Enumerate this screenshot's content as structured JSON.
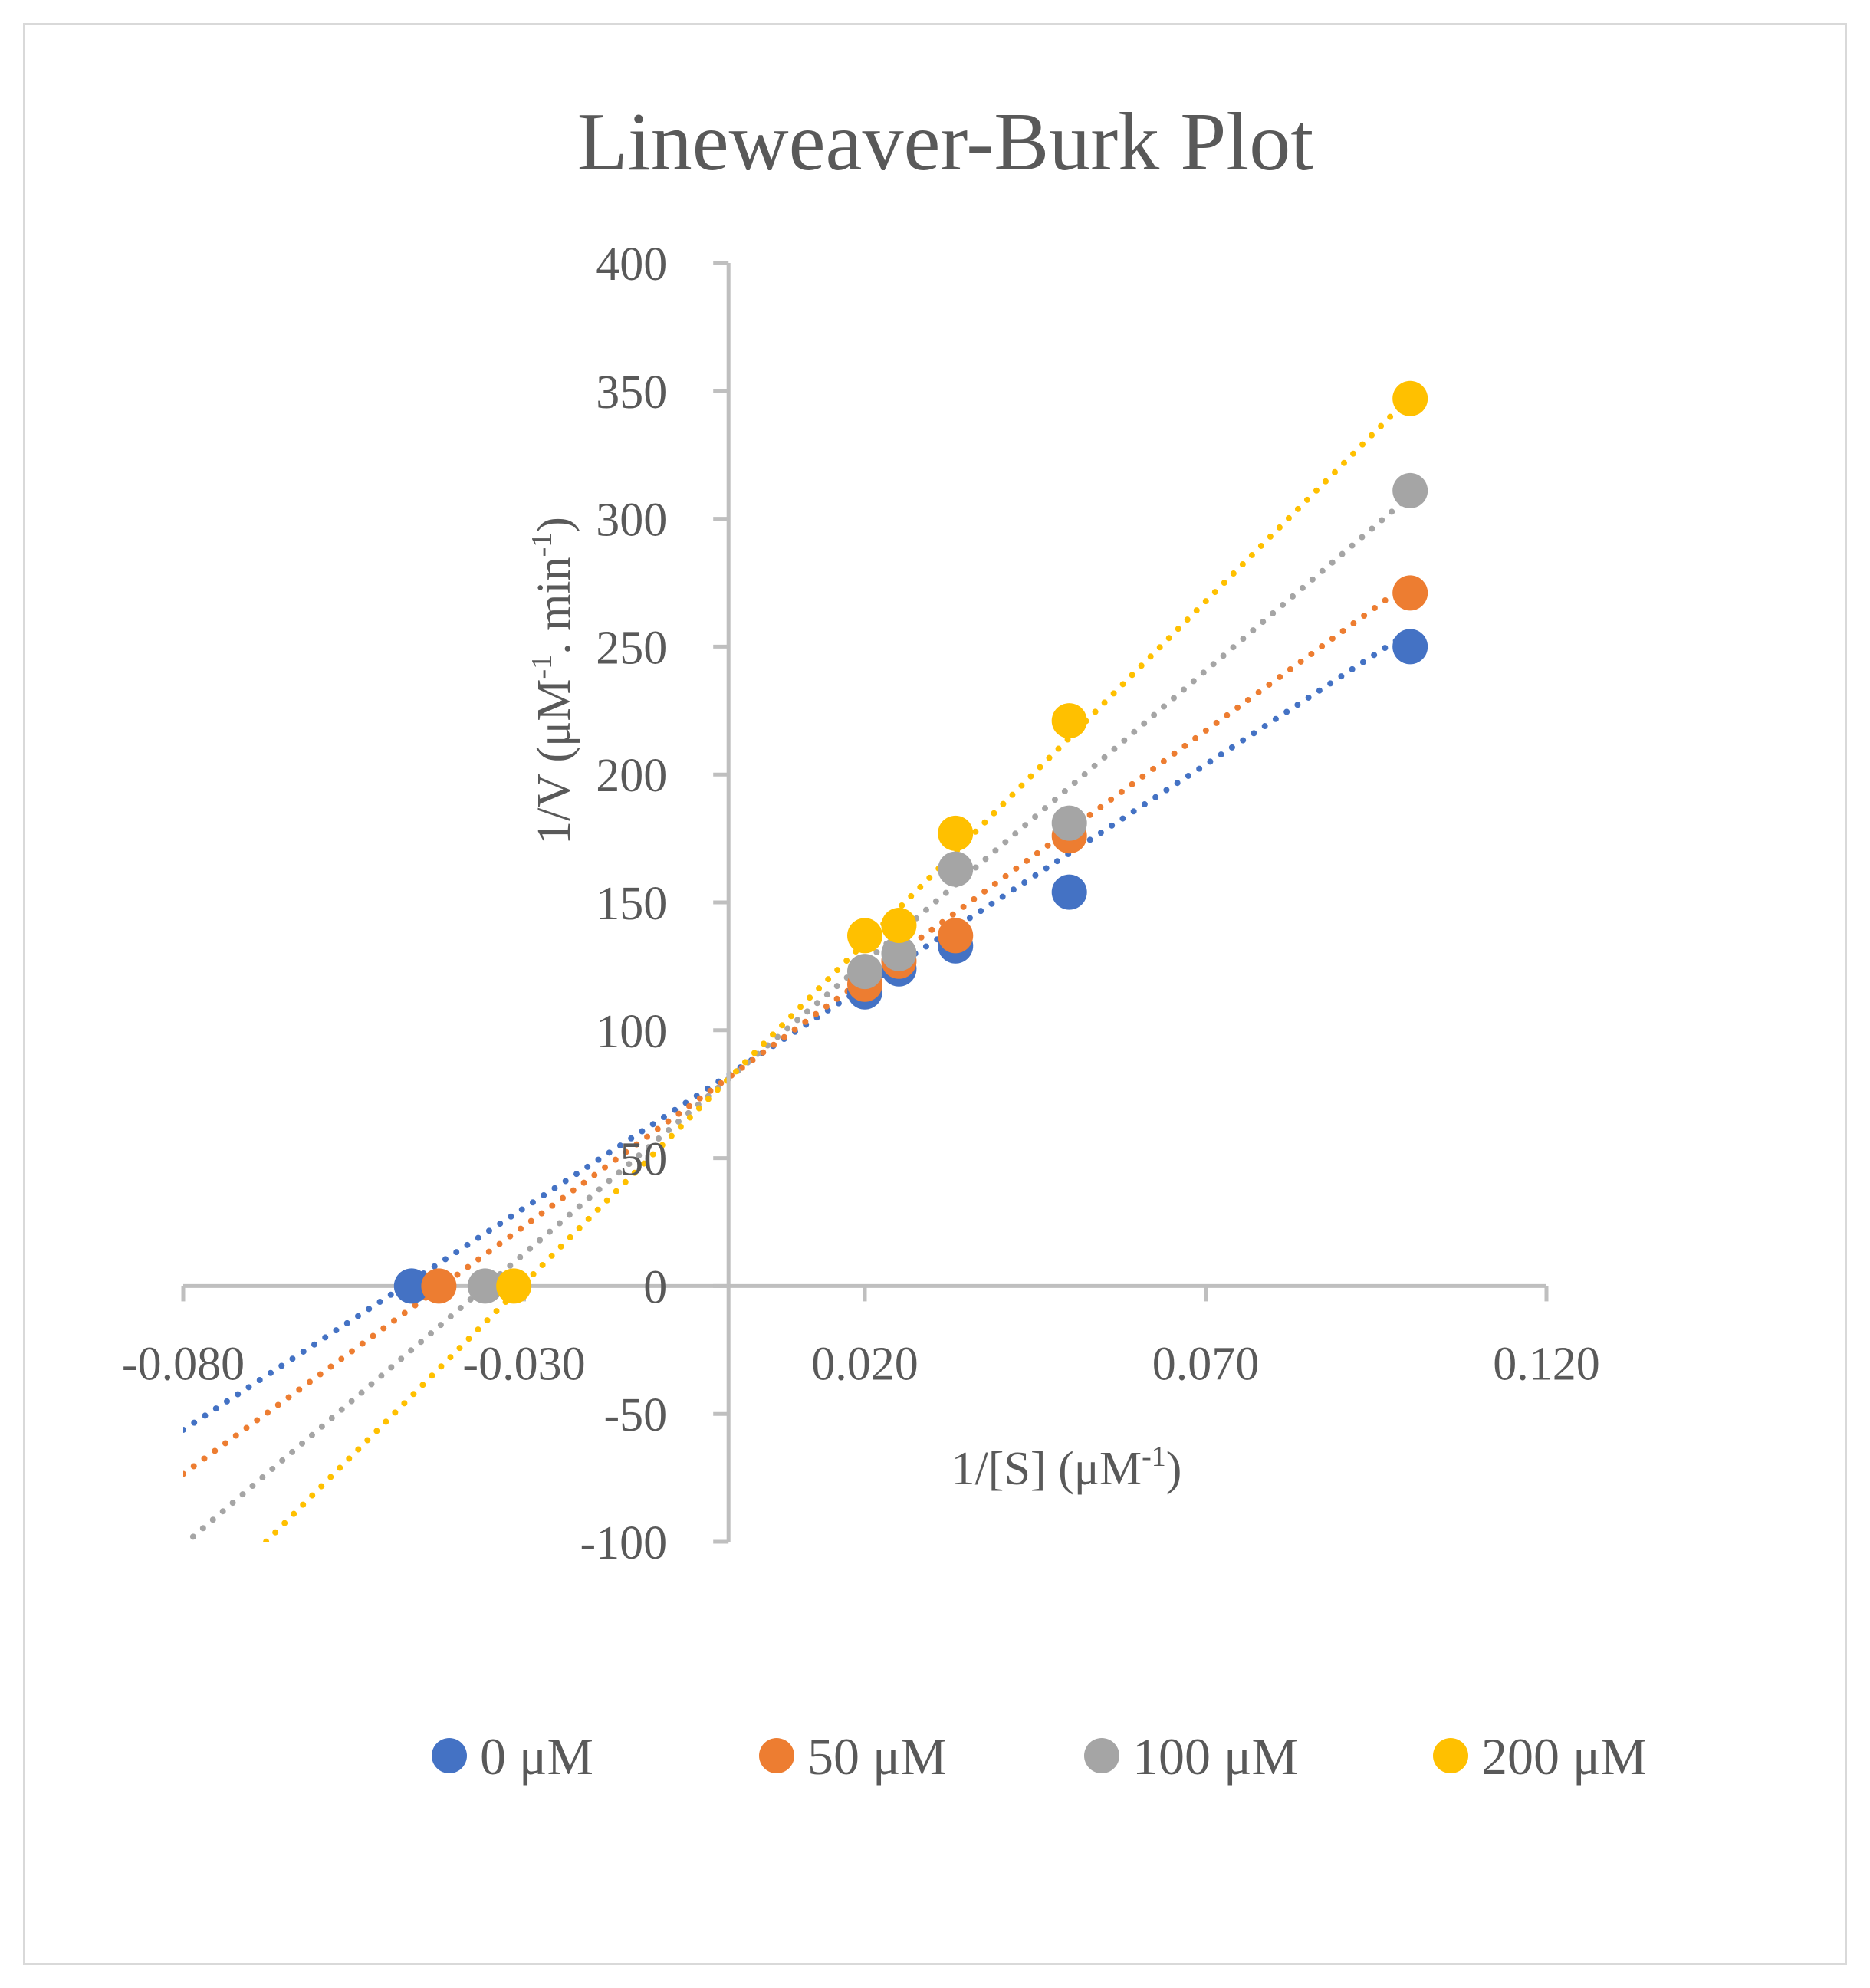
{
  "chart_data": {
    "type": "scatter",
    "title": "Lineweaver-Burk Plot",
    "xlabel": {
      "base": "1/[S] (μM",
      "sup": "-1",
      "tail": ")"
    },
    "ylabel": {
      "part1": "1/V (μM",
      "sup1": "-1",
      "part2": ". min",
      "sup2": "-1",
      "part3": ")"
    },
    "xlim": [
      -0.08,
      0.12
    ],
    "ylim": [
      -100,
      400
    ],
    "x_ticks": [
      -0.08,
      -0.03,
      0.02,
      0.07,
      0.12
    ],
    "x_tick_labels": [
      "-0.080",
      "-0.030",
      "0.020",
      "0.070",
      "0.120"
    ],
    "y_ticks": [
      -100,
      -50,
      0,
      50,
      100,
      150,
      200,
      250,
      300,
      350,
      400
    ],
    "y_tick_labels": [
      "-100",
      "-50",
      "0",
      "50",
      "100",
      "150",
      "200",
      "250",
      "300",
      "350",
      "400"
    ],
    "legend_position": "bottom",
    "trendline_style": "dotted linear",
    "series": [
      {
        "name": "0 μM",
        "color": "#4472c4",
        "x": [
          -0.0465,
          0.02,
          0.025,
          0.0333,
          0.05,
          0.1
        ],
        "y": [
          0,
          115,
          124,
          133,
          154,
          250
        ],
        "trendline": {
          "slope": 1734,
          "intercept": 82.5
        }
      },
      {
        "name": "50 μM",
        "color": "#ed7d31",
        "x": [
          -0.0425,
          0.02,
          0.025,
          0.0333,
          0.05,
          0.1
        ],
        "y": [
          0,
          118,
          127,
          137,
          176,
          271
        ],
        "trendline": {
          "slope": 1937,
          "intercept": 81.5
        }
      },
      {
        "name": "100 μM",
        "color": "#a5a5a5",
        "x": [
          -0.0357,
          0.02,
          0.025,
          0.0333,
          0.05,
          0.1
        ],
        "y": [
          0,
          123,
          130,
          163,
          181,
          311
        ],
        "trendline": {
          "slope": 2279,
          "intercept": 81
        }
      },
      {
        "name": "200 μM",
        "color": "#ffc000",
        "x": [
          -0.0315,
          0.02,
          0.025,
          0.0333,
          0.05,
          0.1
        ],
        "y": [
          0,
          137,
          141,
          177,
          221,
          347
        ],
        "trendline": {
          "slope": 2667,
          "intercept": 81
        }
      }
    ]
  }
}
